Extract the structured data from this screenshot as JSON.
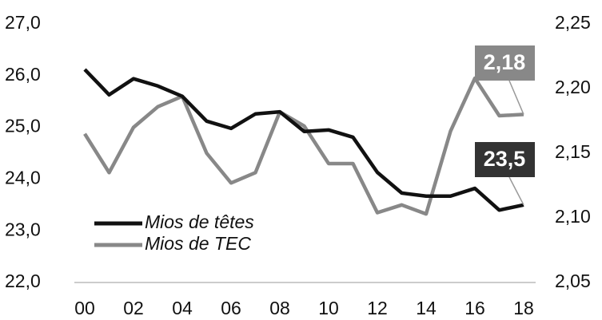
{
  "chart_data": {
    "type": "line",
    "categories": [
      "00",
      null,
      "02",
      null,
      "04",
      null,
      "06",
      null,
      "08",
      null,
      "10",
      null,
      "12",
      null,
      "14",
      null,
      "16",
      null,
      "18"
    ],
    "series": [
      {
        "name": "Mios de têtes",
        "color": "#111111",
        "axis": "y",
        "values": [
          26.12,
          25.63,
          25.94,
          25.8,
          25.6,
          25.12,
          24.98,
          25.26,
          25.3,
          24.92,
          24.95,
          24.81,
          24.13,
          23.73,
          23.67,
          23.67,
          23.82,
          23.4,
          23.5
        ],
        "value_labels": [
          null,
          null,
          null,
          null,
          null,
          null,
          null,
          null,
          null,
          null,
          null,
          null,
          null,
          null,
          null,
          null,
          null,
          null,
          "23,5"
        ]
      },
      {
        "name": "Mios de TEC",
        "color": "#888888",
        "axis": "y2",
        "values": [
          2.165,
          2.135,
          2.17,
          2.186,
          2.194,
          2.15,
          2.127,
          2.135,
          2.182,
          2.171,
          2.142,
          2.142,
          2.104,
          2.11,
          2.103,
          2.167,
          2.208,
          2.179,
          2.18
        ],
        "value_labels": [
          null,
          null,
          null,
          null,
          null,
          null,
          null,
          null,
          null,
          null,
          null,
          null,
          null,
          null,
          null,
          null,
          null,
          null,
          "2,18"
        ]
      }
    ],
    "ylim": [
      22,
      27
    ],
    "yticks": [
      {
        "value": 22,
        "label": "22,0"
      },
      {
        "value": 23,
        "label": "23,0"
      },
      {
        "value": 24,
        "label": "24,0"
      },
      {
        "value": 25,
        "label": "25,0"
      },
      {
        "value": 26,
        "label": "26,0"
      },
      {
        "value": 27,
        "label": "27,0"
      }
    ],
    "y2lim": [
      2.05,
      2.25
    ],
    "y2ticks": [
      {
        "value": 2.05,
        "label": "2,05"
      },
      {
        "value": 2.1,
        "label": "2,10"
      },
      {
        "value": 2.15,
        "label": "2,15"
      },
      {
        "value": 2.2,
        "label": "2,20"
      },
      {
        "value": 2.25,
        "label": "2,25"
      }
    ],
    "legend": "lower-left",
    "grid": false
  }
}
